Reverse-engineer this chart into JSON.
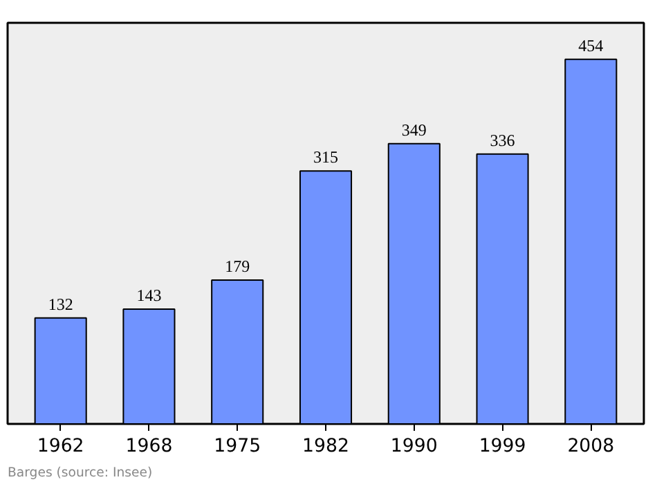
{
  "chart_data": {
    "type": "bar",
    "categories": [
      "1962",
      "1968",
      "1975",
      "1982",
      "1990",
      "1999",
      "2008"
    ],
    "values": [
      132,
      143,
      179,
      315,
      349,
      336,
      454
    ],
    "color": "#7093ff",
    "data_labels": true,
    "grid": false,
    "annotations": [
      "Barges    (source: Insee)"
    ]
  }
}
